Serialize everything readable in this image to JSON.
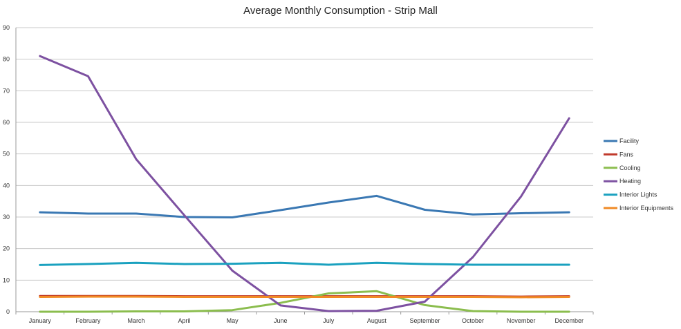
{
  "chart_data": {
    "type": "line",
    "title": "Average Monthly Consumption - Strip Mall",
    "xlabel": "",
    "ylabel": "",
    "ylim": [
      0,
      90
    ],
    "yticks": [
      0,
      10,
      20,
      30,
      40,
      50,
      60,
      70,
      80,
      90
    ],
    "grid": true,
    "legend_position": "right",
    "categories": [
      "January",
      "February",
      "March",
      "April",
      "May",
      "June",
      "July",
      "August",
      "September",
      "October",
      "November",
      "December"
    ],
    "series": [
      {
        "name": "Facility",
        "color": "#3a78b3",
        "values": [
          31.5,
          31.1,
          31.1,
          30.0,
          29.9,
          32.2,
          34.6,
          36.7,
          32.3,
          30.8,
          31.2,
          31.5
        ]
      },
      {
        "name": "Fans",
        "color": "#c0392b",
        "values": [
          5.0,
          5.0,
          5.0,
          4.9,
          4.9,
          4.9,
          4.9,
          4.9,
          4.9,
          4.9,
          4.8,
          4.9
        ]
      },
      {
        "name": "Cooling",
        "color": "#8bbd4e",
        "values": [
          0.0,
          0.0,
          0.1,
          0.1,
          0.5,
          2.8,
          5.8,
          6.5,
          2.1,
          0.2,
          0.0,
          0.0
        ]
      },
      {
        "name": "Heating",
        "color": "#7d51a1",
        "values": [
          81.0,
          74.6,
          48.3,
          30.6,
          13.0,
          2.0,
          0.2,
          0.3,
          3.2,
          17.3,
          36.5,
          61.3
        ]
      },
      {
        "name": "Interior Lights",
        "color": "#1aa1bf",
        "values": [
          14.8,
          15.1,
          15.5,
          15.1,
          15.2,
          15.5,
          14.9,
          15.5,
          15.1,
          14.9,
          14.9,
          14.9
        ]
      },
      {
        "name": "Interior Equipments",
        "color": "#f08a24",
        "values": [
          4.7,
          4.8,
          4.8,
          4.7,
          4.7,
          4.7,
          4.7,
          4.7,
          4.7,
          4.7,
          4.6,
          4.7
        ]
      }
    ]
  }
}
